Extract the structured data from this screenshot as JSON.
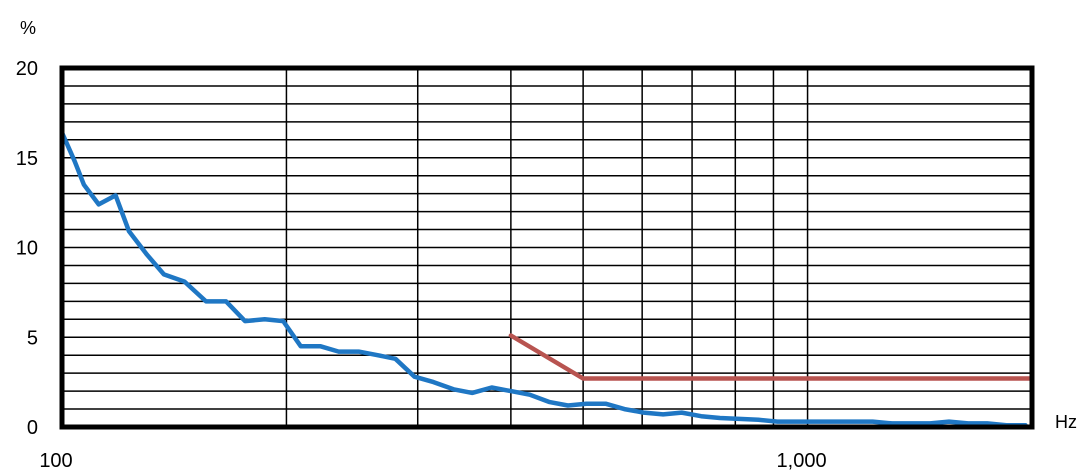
{
  "chart_data": {
    "type": "line",
    "title": "",
    "xlabel": "Hz",
    "ylabel": "%",
    "x_scale": "log",
    "xlim": [
      100,
      2000
    ],
    "ylim": [
      0,
      20
    ],
    "grid": true,
    "x_tick_labels": [
      {
        "value": 100,
        "label": "100"
      },
      {
        "value": 1000,
        "label": "1,000"
      }
    ],
    "y_tick_labels": [
      {
        "value": 0,
        "label": "0"
      },
      {
        "value": 5,
        "label": "5"
      },
      {
        "value": 10,
        "label": "10"
      },
      {
        "value": 15,
        "label": "15"
      },
      {
        "value": 20,
        "label": "20"
      }
    ],
    "series": [
      {
        "color": "#1F77C4",
        "points": [
          [
            100,
            16.4
          ],
          [
            104,
            14.8
          ],
          [
            107,
            13.5
          ],
          [
            112,
            12.4
          ],
          [
            118,
            12.9
          ],
          [
            123,
            10.9
          ],
          [
            130,
            9.6
          ],
          [
            137,
            8.5
          ],
          [
            146,
            8.1
          ],
          [
            156,
            7.0
          ],
          [
            166,
            7.0
          ],
          [
            176,
            5.9
          ],
          [
            187,
            6.0
          ],
          [
            198,
            5.9
          ],
          [
            209,
            4.5
          ],
          [
            222,
            4.5
          ],
          [
            235,
            4.2
          ],
          [
            250,
            4.2
          ],
          [
            265,
            4.0
          ],
          [
            280,
            3.8
          ],
          [
            297,
            2.8
          ],
          [
            315,
            2.5
          ],
          [
            335,
            2.1
          ],
          [
            355,
            1.9
          ],
          [
            377,
            2.2
          ],
          [
            400,
            2.0
          ],
          [
            424,
            1.8
          ],
          [
            450,
            1.4
          ],
          [
            477,
            1.2
          ],
          [
            505,
            1.3
          ],
          [
            536,
            1.3
          ],
          [
            568,
            1.0
          ],
          [
            603,
            0.8
          ],
          [
            640,
            0.7
          ],
          [
            678,
            0.8
          ],
          [
            720,
            0.6
          ],
          [
            763,
            0.5
          ],
          [
            810,
            0.45
          ],
          [
            859,
            0.4
          ],
          [
            911,
            0.3
          ],
          [
            966,
            0.3
          ],
          [
            1025,
            0.3
          ],
          [
            1087,
            0.3
          ],
          [
            1153,
            0.3
          ],
          [
            1223,
            0.3
          ],
          [
            1298,
            0.2
          ],
          [
            1376,
            0.2
          ],
          [
            1460,
            0.2
          ],
          [
            1548,
            0.3
          ],
          [
            1642,
            0.2
          ],
          [
            1742,
            0.2
          ],
          [
            1848,
            0.1
          ],
          [
            1960,
            0.1
          ]
        ]
      },
      {
        "color": "#B85450",
        "points": [
          [
            400,
            5.1
          ],
          [
            500,
            2.7
          ],
          [
            2000,
            2.7
          ]
        ]
      }
    ]
  }
}
